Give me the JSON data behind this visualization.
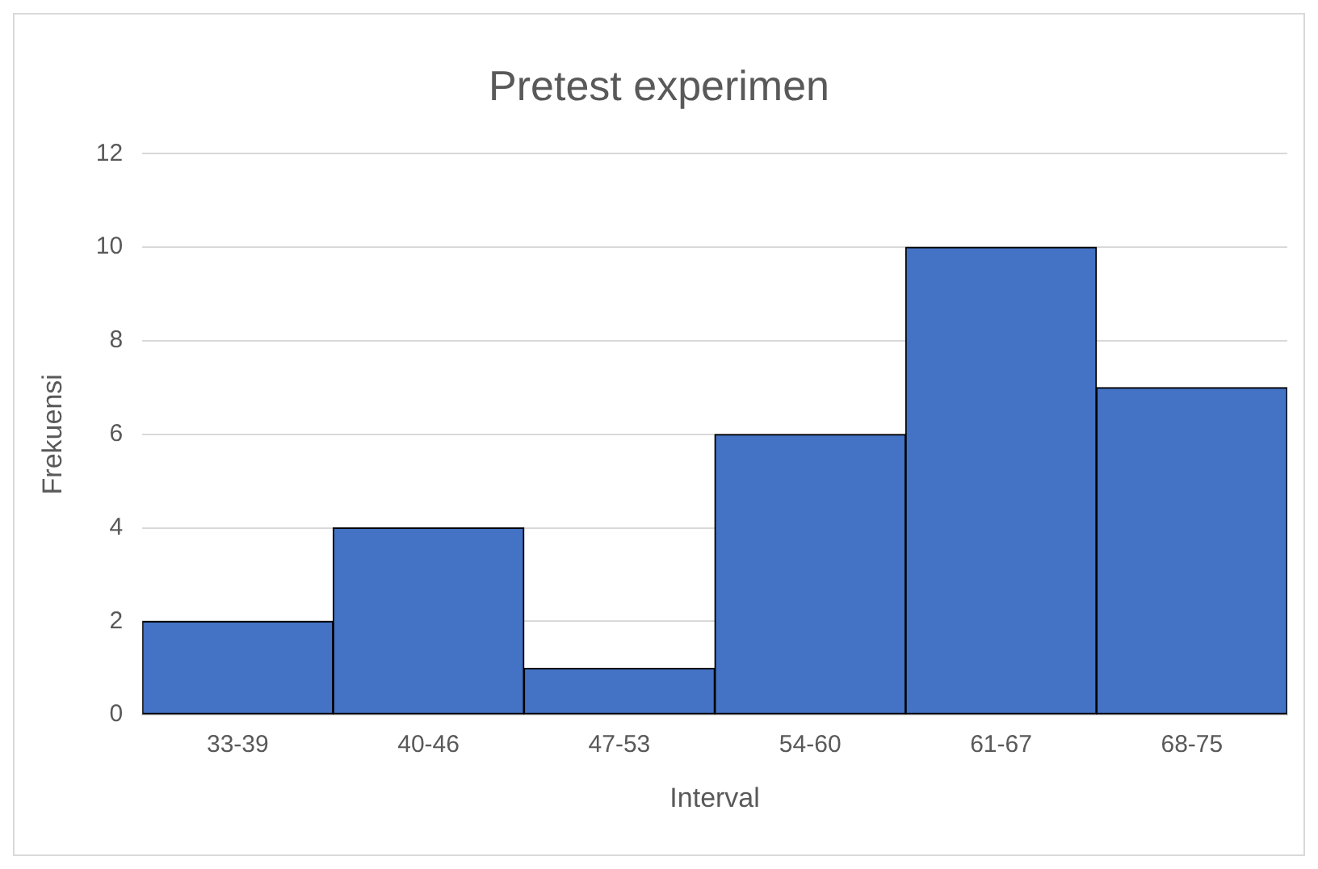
{
  "chart_data": {
    "type": "bar",
    "title": "Pretest experimen",
    "xlabel": "Interval",
    "ylabel": "Frekuensi",
    "categories": [
      "33-39",
      "40-46",
      "47-53",
      "54-60",
      "61-67",
      "68-75"
    ],
    "values": [
      2,
      4,
      1,
      6,
      10,
      7
    ],
    "color": "#4472c4",
    "ylim": [
      0,
      12
    ],
    "yticks": [
      0,
      2,
      4,
      6,
      8,
      10,
      12
    ],
    "grid": "y"
  }
}
